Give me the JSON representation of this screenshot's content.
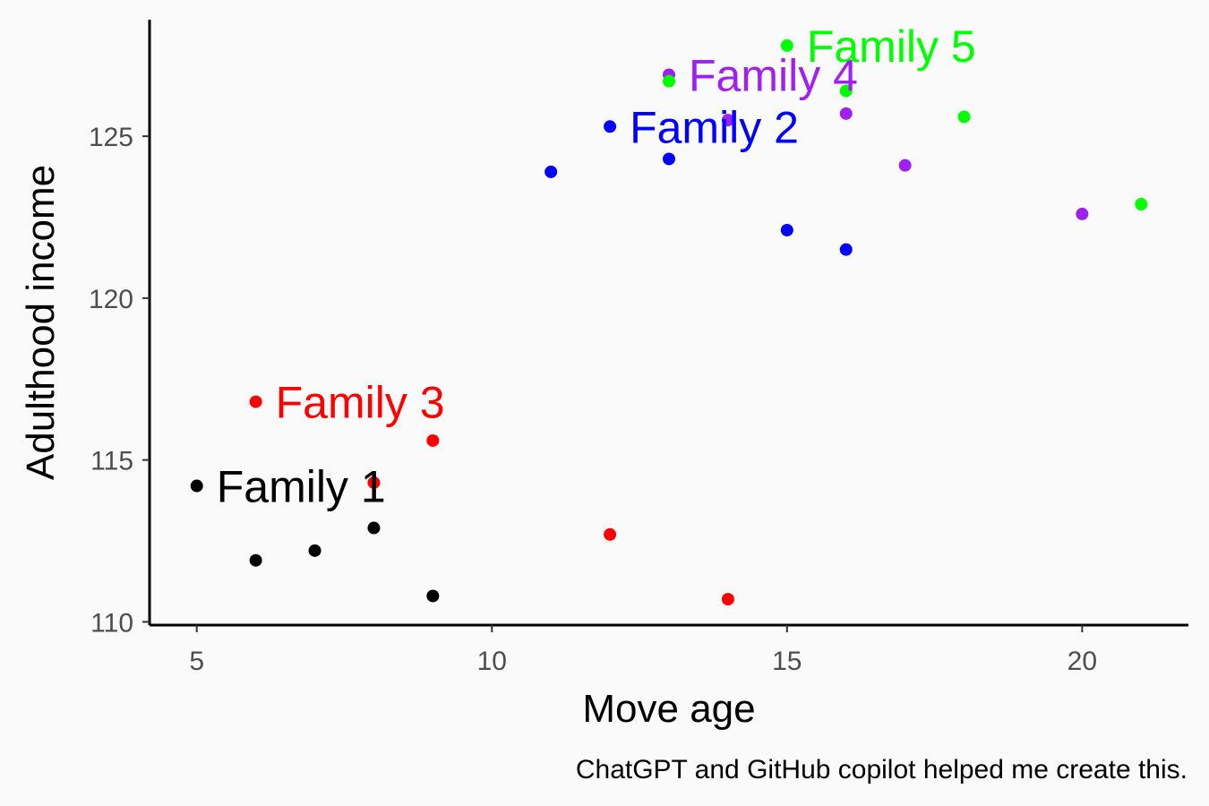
{
  "chart_data": {
    "type": "scatter",
    "xlabel": "Move age",
    "ylabel": "Adulthood income",
    "caption": "ChatGPT and GitHub copilot helped me create this.",
    "xlim": [
      4.2,
      21.8
    ],
    "ylim": [
      109.9,
      128.6
    ],
    "x_ticks": [
      5,
      10,
      15,
      20
    ],
    "y_ticks": [
      110,
      115,
      120,
      125
    ],
    "grid": false,
    "legend": "none",
    "series": [
      {
        "name": "Family 1",
        "color": "#000000",
        "label_at": [
          5,
          114.2
        ],
        "points": [
          [
            5,
            114.2
          ],
          [
            6,
            111.9
          ],
          [
            7,
            112.2
          ],
          [
            8,
            112.9
          ],
          [
            9,
            110.8
          ]
        ]
      },
      {
        "name": "Family 2",
        "color": "#0000FF",
        "label_at": [
          12,
          125.3
        ],
        "points": [
          [
            11,
            123.9
          ],
          [
            12,
            125.3
          ],
          [
            13,
            124.3
          ],
          [
            15,
            122.1
          ],
          [
            16,
            121.5
          ]
        ]
      },
      {
        "name": "Family 3",
        "color": "#FF0000",
        "label_at": [
          6,
          116.8
        ],
        "points": [
          [
            6,
            116.8
          ],
          [
            8,
            114.3
          ],
          [
            9,
            115.6
          ],
          [
            12,
            112.7
          ],
          [
            14,
            110.7
          ]
        ]
      },
      {
        "name": "Family 4",
        "color": "#A020F0",
        "label_at": [
          13,
          126.9
        ],
        "points": [
          [
            13,
            126.9
          ],
          [
            14,
            125.5
          ],
          [
            16,
            125.7
          ],
          [
            17,
            124.1
          ],
          [
            20,
            122.6
          ]
        ]
      },
      {
        "name": "Family 5",
        "color": "#00FF00",
        "label_at": [
          15,
          127.8
        ],
        "points": [
          [
            15,
            127.8
          ],
          [
            13,
            126.7
          ],
          [
            16,
            126.4
          ],
          [
            18,
            125.6
          ],
          [
            21,
            122.9
          ]
        ]
      }
    ]
  }
}
